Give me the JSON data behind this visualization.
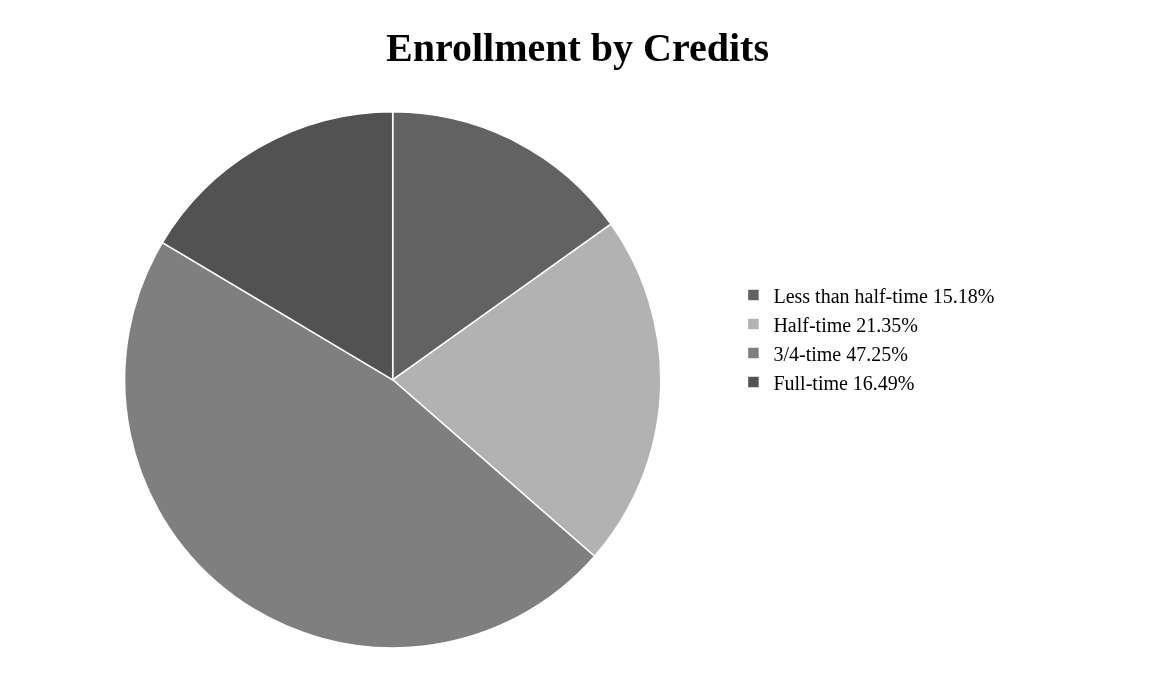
{
  "chart_data": {
    "type": "pie",
    "title": "Enrollment by Credits",
    "categories": [
      "Less than half-time 15.18%",
      "Half-time 21.35%",
      "3/4-time 47.25%",
      "Full-time 16.49%"
    ],
    "values": [
      15.18,
      21.35,
      47.25,
      16.49
    ],
    "colors": [
      "#626262",
      "#b2b2b2",
      "#7f7f7f",
      "#525252"
    ],
    "legend": "right"
  }
}
